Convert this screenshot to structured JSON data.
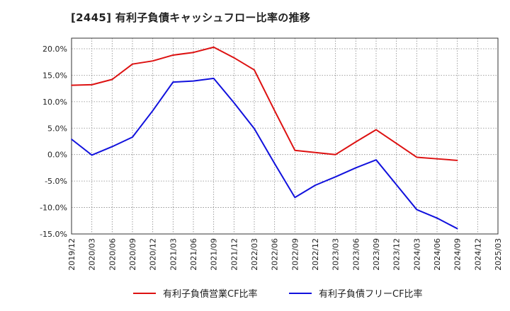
{
  "chart_data": {
    "type": "line",
    "title": "[2445]  有利子負債キャッシュフロー比率の推移",
    "xlabel": "",
    "ylabel": "",
    "x": [
      "2019/12",
      "2020/03",
      "2020/06",
      "2020/09",
      "2020/12",
      "2021/03",
      "2021/06",
      "2021/09",
      "2021/12",
      "2022/03",
      "2022/06",
      "2022/09",
      "2022/12",
      "2023/03",
      "2023/06",
      "2023/09",
      "2023/12",
      "2024/03",
      "2024/06",
      "2024/09",
      "2024/12",
      "2025/03"
    ],
    "ylim": [
      -15,
      22
    ],
    "yticks": [
      -15,
      -10,
      -5,
      0,
      5,
      10,
      15,
      20
    ],
    "ytick_labels": [
      "-15.0%",
      "-10.0%",
      "-5.0%",
      "0.0%",
      "5.0%",
      "10.0%",
      "15.0%",
      "20.0%"
    ],
    "grid": true,
    "legend_position": "bottom",
    "series": [
      {
        "name": "有利子負債営業CF比率",
        "color": "#dd1111",
        "values": [
          13.1,
          13.2,
          14.2,
          17.1,
          17.7,
          18.8,
          19.3,
          20.3,
          18.3,
          16.0,
          8.3,
          0.8,
          0.4,
          0.0,
          2.4,
          4.7,
          2.1,
          -0.5,
          -0.8,
          -1.1,
          null,
          null
        ]
      },
      {
        "name": "有利子負債フリーCF比率",
        "color": "#1111dd",
        "values": [
          2.9,
          -0.1,
          1.5,
          3.3,
          8.3,
          13.7,
          13.9,
          14.4,
          9.8,
          4.9,
          -1.7,
          -8.1,
          -5.8,
          -4.2,
          -2.5,
          -1.0,
          -5.7,
          -10.4,
          -12.0,
          -14.0,
          null,
          null
        ]
      }
    ]
  }
}
